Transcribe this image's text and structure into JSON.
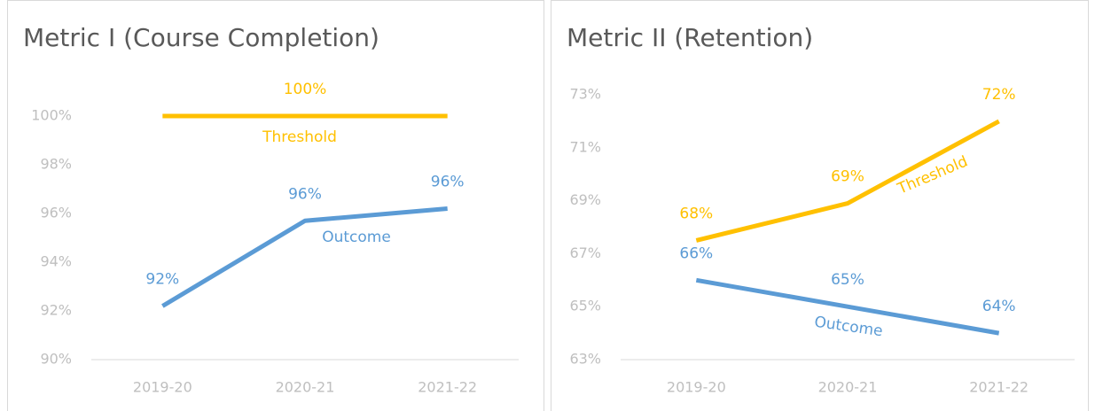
{
  "chart_data": [
    {
      "type": "line",
      "title": "Metric I (Course Completion)",
      "categories": [
        "2019-20",
        "2020-21",
        "2021-22"
      ],
      "ylim": [
        90,
        100
      ],
      "yticks": [
        {
          "value": 90,
          "label": "90%"
        },
        {
          "value": 92,
          "label": "92%"
        },
        {
          "value": 94,
          "label": "94%"
        },
        {
          "value": 96,
          "label": "96%"
        },
        {
          "value": 98,
          "label": "98%"
        },
        {
          "value": 100,
          "label": "100%"
        }
      ],
      "series": [
        {
          "name": "Threshold",
          "color": "#FFC000",
          "values": [
            100,
            100,
            100
          ],
          "value_labels": [
            null,
            "100%",
            null
          ]
        },
        {
          "name": "Outcome",
          "color": "#5B9BD5",
          "values": [
            92.2,
            95.7,
            96.2
          ],
          "value_labels": [
            "92%",
            "96%",
            "96%"
          ]
        }
      ]
    },
    {
      "type": "line",
      "title": "Metric II (Retention)",
      "categories": [
        "2019-20",
        "2020-21",
        "2021-22"
      ],
      "ylim": [
        63,
        73
      ],
      "yticks": [
        {
          "value": 63,
          "label": "63%"
        },
        {
          "value": 65,
          "label": "65%"
        },
        {
          "value": 67,
          "label": "67%"
        },
        {
          "value": 69,
          "label": "69%"
        },
        {
          "value": 71,
          "label": "71%"
        },
        {
          "value": 73,
          "label": "73%"
        }
      ],
      "series": [
        {
          "name": "Threshold",
          "color": "#FFC000",
          "values": [
            67.5,
            68.9,
            72.0
          ],
          "value_labels": [
            "68%",
            "69%",
            "72%"
          ]
        },
        {
          "name": "Outcome",
          "color": "#5B9BD5",
          "values": [
            66.0,
            65.0,
            64.0
          ],
          "value_labels": [
            "66%",
            "65%",
            "64%"
          ]
        }
      ]
    }
  ]
}
